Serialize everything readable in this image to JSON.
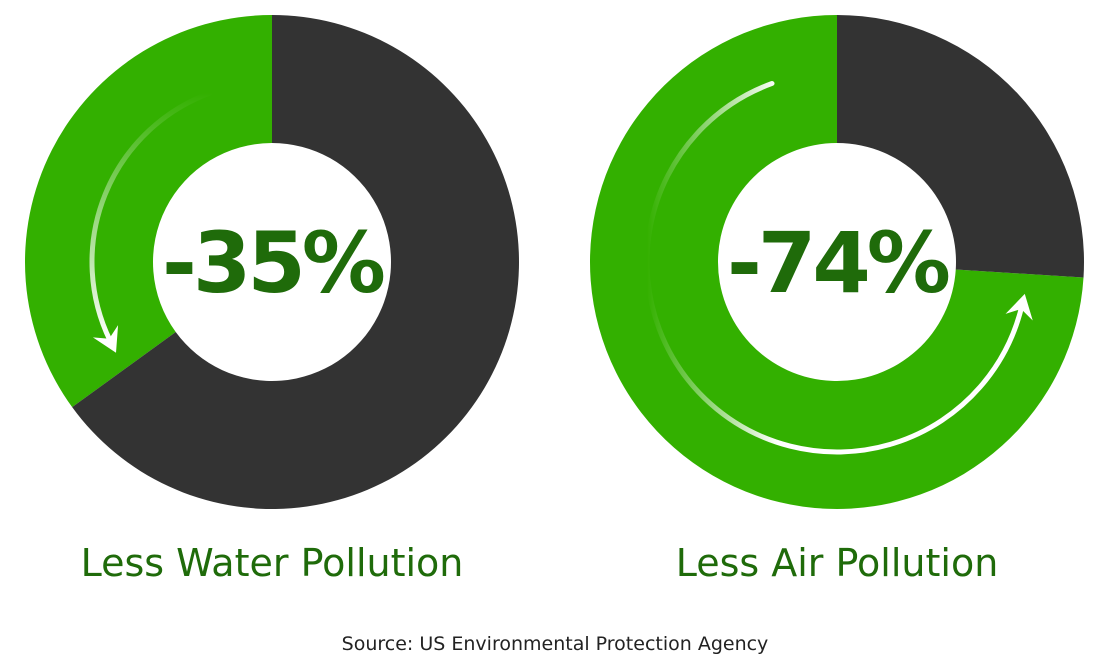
{
  "chart_data": [
    {
      "type": "pie",
      "variant": "donut",
      "center_label": "-35%",
      "label": "Less Water Pollution",
      "slices": [
        {
          "value": 35,
          "color": "#33b000"
        },
        {
          "value": 65,
          "color": "#333333"
        }
      ],
      "arrow_direction": "counterclockwise"
    },
    {
      "type": "pie",
      "variant": "donut",
      "center_label": "-74%",
      "label": "Less Air Pollution",
      "slices": [
        {
          "value": 74,
          "color": "#33b000"
        },
        {
          "value": 26,
          "color": "#333333"
        }
      ],
      "arrow_direction": "counterclockwise"
    }
  ],
  "source": "Source: US Environmental Protection Agency",
  "colors": {
    "accent_green": "#33b000",
    "dark_slice": "#333333",
    "text_green": "#1f6b0a",
    "source_text": "#222222",
    "arrow": "#ffffff"
  }
}
